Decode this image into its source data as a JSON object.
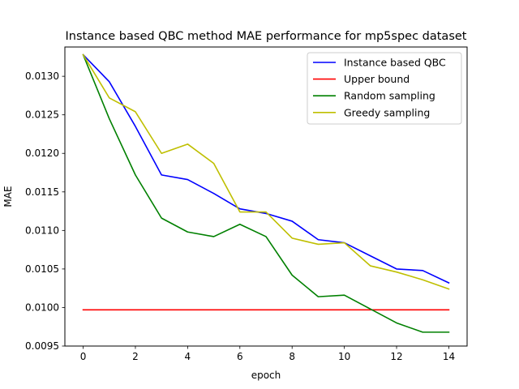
{
  "chart_data": {
    "type": "line",
    "title": "Instance based QBC method MAE performance for mp5spec dataset",
    "xlabel": "epoch",
    "ylabel": "MAE",
    "xlim": [
      -0.7,
      14.7
    ],
    "ylim": [
      0.0095,
      0.01338
    ],
    "x_ticks": [
      0,
      2,
      4,
      6,
      8,
      10,
      12,
      14
    ],
    "x_tick_labels": [
      "0",
      "2",
      "4",
      "6",
      "8",
      "10",
      "12",
      "14"
    ],
    "y_ticks": [
      0.0095,
      0.01,
      0.0105,
      0.011,
      0.0115,
      0.012,
      0.0125,
      0.013
    ],
    "y_tick_labels": [
      "0.0095",
      "0.0100",
      "0.0105",
      "0.0110",
      "0.0115",
      "0.0120",
      "0.0125",
      "0.0130"
    ],
    "grid": false,
    "legend_position": "top-right",
    "x": [
      0,
      1,
      2,
      3,
      4,
      5,
      6,
      7,
      8,
      9,
      10,
      11,
      12,
      13,
      14
    ],
    "series": [
      {
        "name": "Instance based QBC",
        "color": "#0000ff",
        "values": [
          0.01328,
          0.01293,
          0.01235,
          0.01172,
          0.01166,
          0.01148,
          0.01128,
          0.01122,
          0.01112,
          0.01088,
          0.01084,
          0.01067,
          0.0105,
          0.01048,
          0.01032
        ]
      },
      {
        "name": "Upper bound",
        "color": "#ff0000",
        "values": [
          0.00997,
          0.00997,
          0.00997,
          0.00997,
          0.00997,
          0.00997,
          0.00997,
          0.00997,
          0.00997,
          0.00997,
          0.00997,
          0.00997,
          0.00997,
          0.00997,
          0.00997
        ]
      },
      {
        "name": "Random sampling",
        "color": "#008000",
        "values": [
          0.01328,
          0.01245,
          0.01172,
          0.01116,
          0.01098,
          0.01092,
          0.01108,
          0.01092,
          0.01042,
          0.01014,
          0.01016,
          0.00998,
          0.0098,
          0.00968,
          0.00968
        ]
      },
      {
        "name": "Greedy sampling",
        "color": "#bfbf00",
        "values": [
          0.01328,
          0.01272,
          0.01254,
          0.012,
          0.01212,
          0.01187,
          0.01124,
          0.01124,
          0.0109,
          0.01082,
          0.01084,
          0.01054,
          0.01046,
          0.01036,
          0.01024
        ]
      }
    ]
  }
}
